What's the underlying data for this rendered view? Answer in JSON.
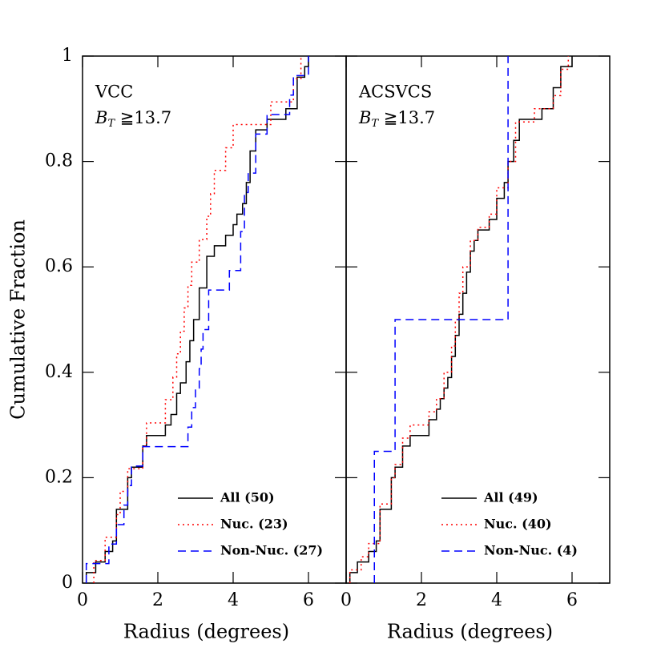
{
  "chart_data": [
    {
      "type": "step",
      "annotation": "VCC",
      "subtitle": {
        "base": "B",
        "sub": "T",
        "rest": " ≧13.7"
      },
      "xlabel": "Radius (degrees)",
      "ylabel": "Cumulative Fraction",
      "xlim": [
        0,
        7
      ],
      "ylim": [
        0,
        1
      ],
      "xticks": [
        0,
        2,
        4,
        6
      ],
      "yticks": [
        0,
        0.2,
        0.4,
        0.6,
        0.8,
        1
      ],
      "legend": "lower right",
      "series": [
        {
          "name": "All (50)",
          "color": "#000000",
          "style": "solid",
          "x": [
            0.1,
            0.35,
            0.6,
            0.8,
            0.9,
            1.2,
            1.3,
            1.6,
            1.7,
            2.2,
            2.35,
            2.5,
            2.6,
            2.75,
            2.85,
            2.95,
            3.1,
            3.3,
            3.5,
            3.8,
            4.0,
            4.1,
            4.25,
            4.35,
            4.45,
            4.6,
            4.9,
            5.4,
            5.7,
            5.9,
            6.0
          ],
          "values": [
            0.02,
            0.04,
            0.06,
            0.08,
            0.14,
            0.2,
            0.22,
            0.26,
            0.28,
            0.3,
            0.32,
            0.36,
            0.38,
            0.42,
            0.46,
            0.5,
            0.56,
            0.62,
            0.64,
            0.66,
            0.68,
            0.7,
            0.72,
            0.76,
            0.82,
            0.86,
            0.88,
            0.9,
            0.96,
            0.98,
            1.0
          ]
        },
        {
          "name": "Nuc. (23)",
          "color": "#ff0000",
          "style": "dotted",
          "x": [
            0.3,
            0.6,
            0.9,
            1.0,
            1.2,
            1.6,
            1.7,
            2.2,
            2.4,
            2.5,
            2.6,
            2.7,
            2.8,
            2.9,
            3.1,
            3.3,
            3.4,
            3.5,
            3.8,
            4.0,
            5.0,
            5.6,
            5.8
          ],
          "values": [
            0.043,
            0.087,
            0.13,
            0.174,
            0.217,
            0.26,
            0.304,
            0.348,
            0.391,
            0.435,
            0.478,
            0.522,
            0.565,
            0.609,
            0.652,
            0.696,
            0.739,
            0.783,
            0.826,
            0.87,
            0.913,
            0.957,
            1.0
          ]
        },
        {
          "name": "Non-Nuc. (27)",
          "color": "#0000ff",
          "style": "dashed",
          "x": [
            0.1,
            0.7,
            0.9,
            1.1,
            1.2,
            1.3,
            1.6,
            2.8,
            2.9,
            3.0,
            3.1,
            3.15,
            3.2,
            3.35,
            3.9,
            4.2,
            4.3,
            4.4,
            4.6,
            4.9,
            5.5,
            5.6,
            6.0
          ],
          "values": [
            0.037,
            0.074,
            0.111,
            0.148,
            0.185,
            0.222,
            0.259,
            0.296,
            0.333,
            0.37,
            0.407,
            0.444,
            0.481,
            0.556,
            0.593,
            0.667,
            0.741,
            0.778,
            0.852,
            0.889,
            0.926,
            0.963,
            1.0
          ]
        }
      ]
    },
    {
      "type": "step",
      "annotation": "ACSVCS",
      "subtitle": {
        "base": "B",
        "sub": "T",
        "rest": " ≧13.7"
      },
      "xlabel": "Radius (degrees)",
      "xlim": [
        0,
        7
      ],
      "ylim": [
        0,
        1
      ],
      "xticks": [
        0,
        2,
        4,
        6
      ],
      "yticks": [
        0,
        0.2,
        0.4,
        0.6,
        0.8,
        1
      ],
      "legend": "lower right",
      "series": [
        {
          "name": "All (49)",
          "color": "#000000",
          "style": "solid",
          "x": [
            0.1,
            0.3,
            0.6,
            0.8,
            0.9,
            1.2,
            1.3,
            1.5,
            1.7,
            2.2,
            2.4,
            2.5,
            2.6,
            2.7,
            2.8,
            2.9,
            3.0,
            3.1,
            3.2,
            3.3,
            3.4,
            3.5,
            3.8,
            4.0,
            4.2,
            4.3,
            4.45,
            4.6,
            5.2,
            5.5,
            5.7,
            6.0
          ],
          "values": [
            0.02,
            0.04,
            0.06,
            0.08,
            0.14,
            0.2,
            0.22,
            0.26,
            0.28,
            0.31,
            0.33,
            0.35,
            0.37,
            0.39,
            0.43,
            0.47,
            0.51,
            0.55,
            0.59,
            0.63,
            0.65,
            0.67,
            0.69,
            0.73,
            0.76,
            0.8,
            0.84,
            0.88,
            0.9,
            0.94,
            0.98,
            1.0
          ]
        },
        {
          "name": "Nuc. (40)",
          "color": "#ff0000",
          "style": "dotted",
          "x": [
            0.1,
            0.4,
            0.6,
            0.9,
            1.2,
            1.3,
            1.5,
            1.7,
            2.2,
            2.4,
            2.6,
            2.8,
            2.9,
            3.0,
            3.1,
            3.3,
            3.5,
            3.8,
            4.0,
            4.3,
            4.5,
            5.0,
            5.5,
            5.7,
            5.9
          ],
          "values": [
            0.025,
            0.05,
            0.075,
            0.15,
            0.2,
            0.225,
            0.275,
            0.3,
            0.325,
            0.35,
            0.4,
            0.45,
            0.5,
            0.55,
            0.6,
            0.65,
            0.675,
            0.7,
            0.75,
            0.8,
            0.875,
            0.9,
            0.925,
            0.975,
            1.0
          ]
        },
        {
          "name": "Non-Nuc. (4)",
          "color": "#0000ff",
          "style": "dashed",
          "x": [
            0.75,
            1.3,
            4.3
          ],
          "values": [
            0.25,
            0.5,
            1.0
          ]
        }
      ]
    }
  ]
}
